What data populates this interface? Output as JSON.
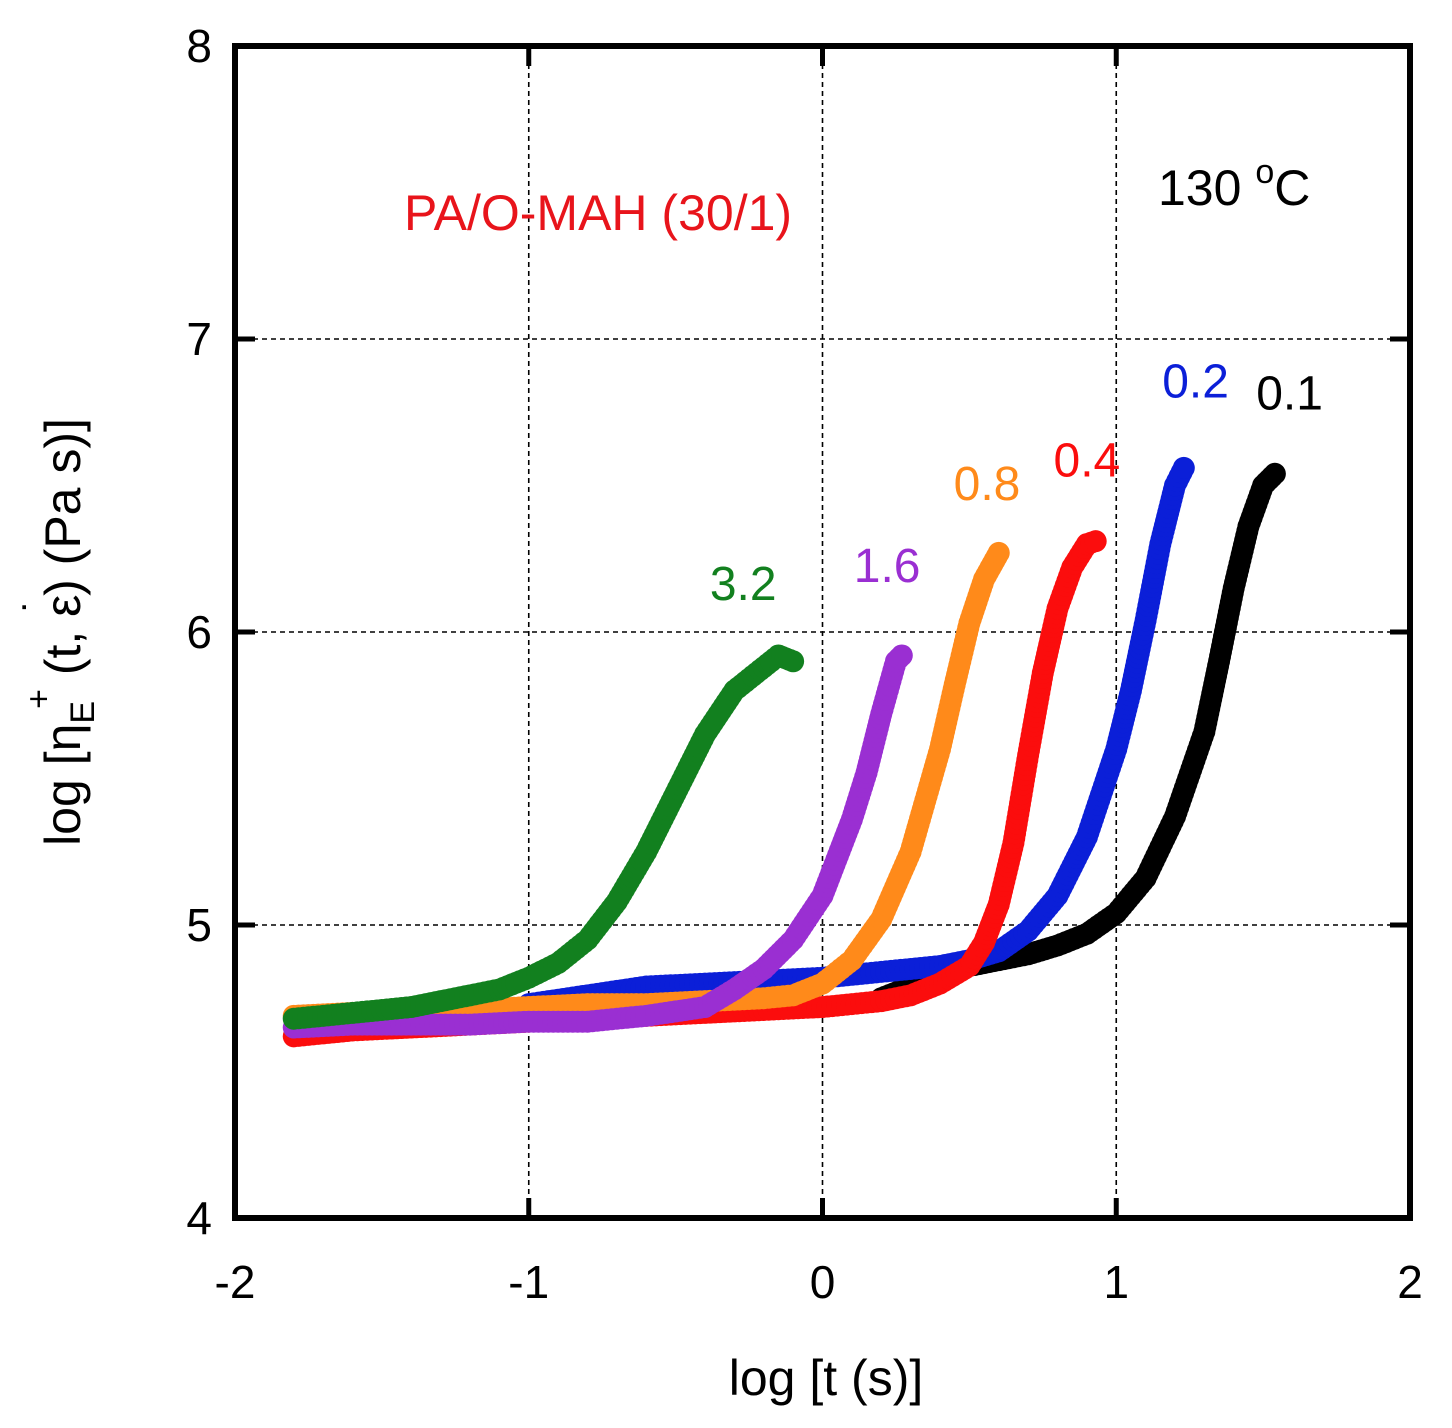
{
  "chart_data": {
    "type": "scatter",
    "xlabel": "log [t (s)]",
    "ylabel": "log [ηE+ (t, ε̇) (Pa s)]",
    "ylabel_parts": {
      "prefix": "log [η",
      "sub": "E",
      "sup": "+",
      "mid": " (t, ε",
      "dot": "˙",
      "suffix": ") (Pa s)]"
    },
    "xlim": [
      -2,
      2
    ],
    "ylim": [
      4,
      8
    ],
    "x_ticks": [
      "-2",
      "-1",
      "0",
      "1",
      "2"
    ],
    "y_ticks": [
      "4",
      "5",
      "6",
      "7",
      "8"
    ],
    "grid": true,
    "annotations": {
      "sample": {
        "text": "PA/O-MAH (30/1)",
        "color": "#e8141b"
      },
      "temperature": {
        "text": "130 ",
        "sup": "o",
        "unit": "C",
        "color": "#000000"
      }
    },
    "series": [
      {
        "name": "0.1",
        "color": "#000000",
        "label": "0.1",
        "label_x": 1.59,
        "label_y": 6.76,
        "points": [
          [
            0.2,
            4.75
          ],
          [
            0.3,
            4.79
          ],
          [
            0.4,
            4.83
          ],
          [
            0.5,
            4.86
          ],
          [
            0.6,
            4.88
          ],
          [
            0.7,
            4.9
          ],
          [
            0.8,
            4.93
          ],
          [
            0.9,
            4.97
          ],
          [
            1.0,
            5.04
          ],
          [
            1.1,
            5.16
          ],
          [
            1.2,
            5.37
          ],
          [
            1.3,
            5.66
          ],
          [
            1.35,
            5.9
          ],
          [
            1.4,
            6.15
          ],
          [
            1.45,
            6.36
          ],
          [
            1.5,
            6.5
          ],
          [
            1.54,
            6.54
          ]
        ]
      },
      {
        "name": "0.2",
        "color": "#0b1fd8",
        "label": "0.2",
        "label_x": 1.27,
        "label_y": 6.8,
        "points": [
          [
            -1.0,
            4.73
          ],
          [
            -0.8,
            4.76
          ],
          [
            -0.6,
            4.79
          ],
          [
            -0.4,
            4.8
          ],
          [
            -0.2,
            4.81
          ],
          [
            0.0,
            4.82
          ],
          [
            0.2,
            4.84
          ],
          [
            0.4,
            4.86
          ],
          [
            0.5,
            4.88
          ],
          [
            0.6,
            4.91
          ],
          [
            0.7,
            4.98
          ],
          [
            0.8,
            5.1
          ],
          [
            0.9,
            5.3
          ],
          [
            1.0,
            5.6
          ],
          [
            1.05,
            5.8
          ],
          [
            1.1,
            6.04
          ],
          [
            1.15,
            6.3
          ],
          [
            1.2,
            6.5
          ],
          [
            1.23,
            6.56
          ]
        ]
      },
      {
        "name": "0.4",
        "color": "#fb0d0d",
        "label": "0.4",
        "label_x": 0.9,
        "label_y": 6.53,
        "points": [
          [
            -1.8,
            4.62
          ],
          [
            -1.6,
            4.64
          ],
          [
            -1.4,
            4.65
          ],
          [
            -1.2,
            4.66
          ],
          [
            -1.0,
            4.67
          ],
          [
            -0.8,
            4.68
          ],
          [
            -0.6,
            4.69
          ],
          [
            -0.4,
            4.7
          ],
          [
            -0.2,
            4.71
          ],
          [
            0.0,
            4.72
          ],
          [
            0.2,
            4.74
          ],
          [
            0.3,
            4.76
          ],
          [
            0.4,
            4.8
          ],
          [
            0.5,
            4.86
          ],
          [
            0.55,
            4.94
          ],
          [
            0.6,
            5.07
          ],
          [
            0.65,
            5.28
          ],
          [
            0.7,
            5.58
          ],
          [
            0.75,
            5.86
          ],
          [
            0.8,
            6.08
          ],
          [
            0.85,
            6.22
          ],
          [
            0.9,
            6.3
          ],
          [
            0.93,
            6.31
          ]
        ]
      },
      {
        "name": "0.8",
        "color": "#ff8a1a",
        "label": "0.8",
        "label_x": 0.56,
        "label_y": 6.45,
        "points": [
          [
            -1.8,
            4.69
          ],
          [
            -1.6,
            4.7
          ],
          [
            -1.4,
            4.7
          ],
          [
            -1.2,
            4.71
          ],
          [
            -1.0,
            4.72
          ],
          [
            -0.8,
            4.73
          ],
          [
            -0.6,
            4.73
          ],
          [
            -0.4,
            4.74
          ],
          [
            -0.2,
            4.75
          ],
          [
            -0.1,
            4.76
          ],
          [
            0.0,
            4.8
          ],
          [
            0.1,
            4.88
          ],
          [
            0.2,
            5.02
          ],
          [
            0.3,
            5.25
          ],
          [
            0.4,
            5.6
          ],
          [
            0.45,
            5.82
          ],
          [
            0.5,
            6.03
          ],
          [
            0.55,
            6.18
          ],
          [
            0.6,
            6.27
          ]
        ]
      },
      {
        "name": "1.6",
        "color": "#9a2fd2",
        "label": "1.6",
        "label_x": 0.22,
        "label_y": 6.17,
        "points": [
          [
            -1.8,
            4.65
          ],
          [
            -1.6,
            4.66
          ],
          [
            -1.4,
            4.66
          ],
          [
            -1.2,
            4.66
          ],
          [
            -1.0,
            4.67
          ],
          [
            -0.8,
            4.67
          ],
          [
            -0.6,
            4.69
          ],
          [
            -0.4,
            4.72
          ],
          [
            -0.3,
            4.78
          ],
          [
            -0.2,
            4.85
          ],
          [
            -0.1,
            4.95
          ],
          [
            0.0,
            5.1
          ],
          [
            0.1,
            5.36
          ],
          [
            0.15,
            5.52
          ],
          [
            0.2,
            5.72
          ],
          [
            0.25,
            5.9
          ],
          [
            0.27,
            5.92
          ]
        ]
      },
      {
        "name": "3.2",
        "color": "#12801f",
        "label": "3.2",
        "label_x": -0.27,
        "label_y": 6.11,
        "points": [
          [
            -1.8,
            4.68
          ],
          [
            -1.6,
            4.7
          ],
          [
            -1.5,
            4.71
          ],
          [
            -1.4,
            4.72
          ],
          [
            -1.3,
            4.74
          ],
          [
            -1.2,
            4.76
          ],
          [
            -1.1,
            4.78
          ],
          [
            -1.0,
            4.82
          ],
          [
            -0.9,
            4.87
          ],
          [
            -0.8,
            4.95
          ],
          [
            -0.7,
            5.08
          ],
          [
            -0.6,
            5.25
          ],
          [
            -0.5,
            5.45
          ],
          [
            -0.4,
            5.65
          ],
          [
            -0.3,
            5.8
          ],
          [
            -0.2,
            5.88
          ],
          [
            -0.15,
            5.92
          ],
          [
            -0.1,
            5.9
          ]
        ]
      }
    ]
  }
}
